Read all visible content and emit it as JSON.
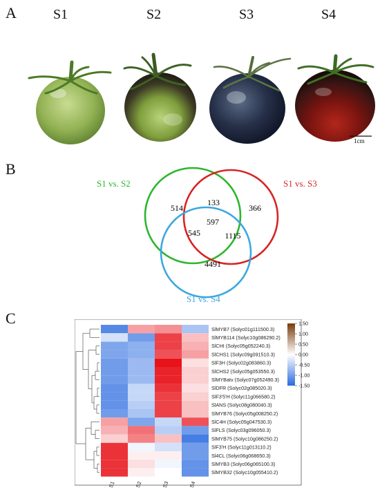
{
  "panels": {
    "a": "A",
    "b": "B",
    "c": "C"
  },
  "stages": [
    "S1",
    "S2",
    "S3",
    "S4"
  ],
  "scale_bar_label": "1cm",
  "venn": {
    "labels": [
      "S1  vs. S2",
      "S1  vs. S3",
      "S1  vs. S4"
    ],
    "colors": [
      "#2db62d",
      "#d92323",
      "#3aa7df"
    ],
    "counts": {
      "only_a": "514",
      "only_b": "366",
      "only_c": "4491",
      "ab": "133",
      "ac": "545",
      "bc": "1115",
      "abc": "597"
    }
  },
  "chart_data": {
    "type": "heatmap",
    "columns": [
      "S1",
      "S2",
      "S3",
      "S4"
    ],
    "rows": [
      "SlMYB7 (Solyc01g111500.3)",
      "SlMYB114 (Solyc10g086290.2)",
      "SlCHI (Solyc05g052240.3)",
      "SlCHS1 (Solyc09g091510.3)",
      "SlF3H (Solyc02g083860.3)",
      "SlCHS2 (Solyc05g053550.3)",
      "SlMYBatv (Solyc07g052490.3)",
      "SlDFR (Solyc02g085020.3)",
      "SlF3'5'H (Solyc11g066580.2)",
      "SlANS (Solyc08g080040.3)",
      "SlMYB76 (Solyc05g008250.2)",
      "SlC4H (Solyc05g047530.3)",
      "SlFLS (Solyc03g096050.3)",
      "SlMYB75 (Solyc10g086250.2)",
      "SlF3'H (Solyc11g013110.2)",
      "Sl4CL (Solyc06g068650.3)",
      "SlMYB3 (Solyc06g065100.3)",
      "SlMYB32 (Solyc10g055410.2)"
    ],
    "values": [
      [
        -1.2,
        0.6,
        0.7,
        -0.6
      ],
      [
        -0.3,
        -1.0,
        1.2,
        0.4
      ],
      [
        -0.9,
        -0.8,
        1.2,
        0.5
      ],
      [
        -0.9,
        -0.8,
        1.1,
        0.6
      ],
      [
        -1.0,
        -0.7,
        1.5,
        0.2
      ],
      [
        -1.0,
        -0.7,
        1.4,
        0.3
      ],
      [
        -1.0,
        -0.7,
        1.4,
        0.3
      ],
      [
        -1.1,
        -0.4,
        1.3,
        0.2
      ],
      [
        -1.1,
        -0.4,
        1.2,
        0.3
      ],
      [
        -1.1,
        -0.5,
        1.2,
        0.4
      ],
      [
        -1.0,
        -0.6,
        1.2,
        0.4
      ],
      [
        0.6,
        -0.9,
        -0.4,
        1.1
      ],
      [
        0.5,
        0.9,
        -0.5,
        -1.0
      ],
      [
        0.3,
        0.8,
        0.4,
        -1.3
      ],
      [
        1.3,
        -0.1,
        -0.3,
        -1.0
      ],
      [
        1.3,
        0.1,
        0.1,
        -1.0
      ],
      [
        1.3,
        0.2,
        -0.1,
        -1.1
      ],
      [
        1.3,
        0.1,
        0.0,
        -1.1
      ]
    ],
    "legend": {
      "ticks": [
        1.5,
        1.0,
        0.5,
        0.0,
        -0.5,
        -1.0,
        -1.5
      ],
      "tick_labels": [
        "1.50",
        "1.00",
        "0.50",
        "0.00",
        "-0.50",
        "-1.00",
        "-1.50"
      ],
      "colors": {
        "high": "#7a3a0a",
        "mid": "#ffffff",
        "low": "#2a6be0"
      }
    },
    "value_range": [
      -1.5,
      1.5
    ],
    "cluster_split_after_row": 11
  }
}
